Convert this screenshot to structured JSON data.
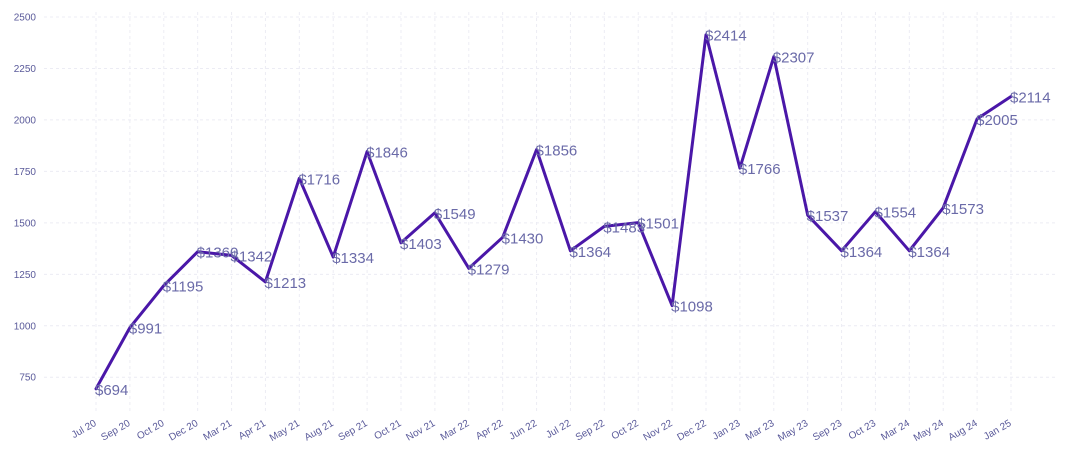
{
  "chart_data": {
    "type": "line",
    "title": "",
    "xlabel": "",
    "ylabel": "",
    "categories": [
      "Jul 20",
      "Sep 20",
      "Oct 20",
      "Dec 20",
      "Mar 21",
      "Apr 21",
      "May 21",
      "Aug 21",
      "Sep 21",
      "Oct 21",
      "Nov 21",
      "Mar 22",
      "Apr 22",
      "Jun 22",
      "Jul 22",
      "Sep 22",
      "Oct 22",
      "Nov 22",
      "Dec 22",
      "Jan 23",
      "Mar 23",
      "May 23",
      "Sep 23",
      "Oct 23",
      "Mar 24",
      "May 24",
      "Aug 24",
      "Jan 25"
    ],
    "values": [
      694,
      991,
      1195,
      1360,
      1342,
      1213,
      1716,
      1334,
      1846,
      1403,
      1549,
      1279,
      1430,
      1856,
      1364,
      1483,
      1501,
      1098,
      2414,
      1766,
      2307,
      1537,
      1364,
      1554,
      1364,
      1573,
      2005,
      2114
    ],
    "data_labels": [
      "$694",
      "$991",
      "$1195",
      "$1360",
      "$1342",
      "$1213",
      "$1716",
      "$1334",
      "$1846",
      "$1403",
      "$1549",
      "$1279",
      "$1430",
      "$1856",
      "$1364",
      "$1483",
      "$1501",
      "$1098",
      "$2414",
      "$1766",
      "$2307",
      "$1537",
      "$1364",
      "$1554",
      "$1364",
      "$1573",
      "$2005",
      "$2114"
    ],
    "ylim": [
      620,
      2500
    ],
    "yticks": [
      "750",
      "1000",
      "1250",
      "1500",
      "1750",
      "2000",
      "2250",
      "2500"
    ],
    "ytick_values": [
      750,
      1000,
      1250,
      1500,
      1750,
      2000,
      2250,
      2500
    ],
    "grid": true,
    "line_color": "#4a17a8"
  }
}
